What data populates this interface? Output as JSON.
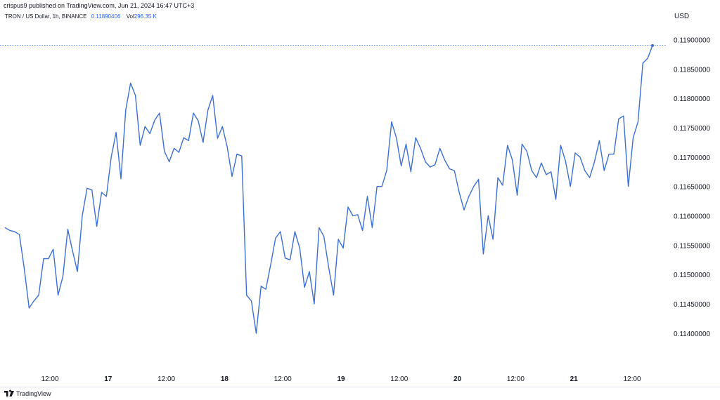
{
  "header": {
    "published": "crispus9 published on TradingView.com, Jun 21, 2024 16:47 UTC+3"
  },
  "legend": {
    "symbol": "TRON / US Dollar, 1h, BINANCE",
    "price": "0.11890406",
    "vol_label": "Vol",
    "vol_value": "296.35 K"
  },
  "currency": "USD",
  "footer": {
    "brand": "TradingView"
  },
  "colors": {
    "line": "#3c6fd6",
    "price_line": "#2962ff",
    "text": "#131722"
  },
  "chart_data": {
    "type": "line",
    "title": "TRON / US Dollar, 1h, BINANCE",
    "ylabel": "USD",
    "ylim": [
      0.1137,
      0.1194
    ],
    "y_ticks": [
      "0.11900000",
      "0.11850000",
      "0.11800000",
      "0.11750000",
      "0.11700000",
      "0.11650000",
      "0.11600000",
      "0.11550000",
      "0.11500000",
      "0.11450000",
      "0.11400000"
    ],
    "x_ticks": [
      {
        "label": "12:00",
        "bold": false
      },
      {
        "label": "17",
        "bold": true
      },
      {
        "label": "12:00",
        "bold": false
      },
      {
        "label": "18",
        "bold": true
      },
      {
        "label": "12:00",
        "bold": false
      },
      {
        "label": "19",
        "bold": true
      },
      {
        "label": "12:00",
        "bold": false
      },
      {
        "label": "20",
        "bold": true
      },
      {
        "label": "12:00",
        "bold": false
      },
      {
        "label": "21",
        "bold": true
      },
      {
        "label": "12:00",
        "bold": false
      }
    ],
    "last_price": 0.11890406,
    "grid": false,
    "series": [
      {
        "values": [
          0.1158,
          0.11575,
          0.11573,
          0.11568,
          0.1151,
          0.11443,
          0.11455,
          0.11465,
          0.11527,
          0.11527,
          0.11543,
          0.11465,
          0.11497,
          0.11577,
          0.1154,
          0.11505,
          0.116,
          0.11647,
          0.11644,
          0.11582,
          0.1164,
          0.11633,
          0.117,
          0.11742,
          0.11663,
          0.1178,
          0.11826,
          0.11805,
          0.1172,
          0.11752,
          0.1174,
          0.11763,
          0.11775,
          0.1171,
          0.11692,
          0.11715,
          0.11708,
          0.11733,
          0.11728,
          0.11775,
          0.11762,
          0.11725,
          0.1178,
          0.11805,
          0.11732,
          0.11752,
          0.11717,
          0.11667,
          0.11705,
          0.11702,
          0.11465,
          0.11455,
          0.114,
          0.1148,
          0.11475,
          0.11517,
          0.11562,
          0.11573,
          0.11528,
          0.11525,
          0.11573,
          0.11545,
          0.11478,
          0.11505,
          0.1145,
          0.1158,
          0.11565,
          0.11512,
          0.11465,
          0.1156,
          0.11545,
          0.11615,
          0.116,
          0.11602,
          0.11575,
          0.11633,
          0.1158,
          0.1165,
          0.1165,
          0.11677,
          0.1176,
          0.11733,
          0.11685,
          0.11722,
          0.11675,
          0.11733,
          0.11715,
          0.11692,
          0.11683,
          0.11687,
          0.11715,
          0.11695,
          0.1168,
          0.11677,
          0.1164,
          0.1161,
          0.11633,
          0.1165,
          0.11662,
          0.11535,
          0.116,
          0.1156,
          0.11665,
          0.11652,
          0.1172,
          0.11695,
          0.11635,
          0.11722,
          0.1171,
          0.11677,
          0.11665,
          0.1169,
          0.1167,
          0.11675,
          0.11628,
          0.1172,
          0.11693,
          0.1165,
          0.11707,
          0.117,
          0.11677,
          0.11665,
          0.11692,
          0.11728,
          0.11677,
          0.11705,
          0.11705,
          0.11765,
          0.1177,
          0.1165,
          0.11733,
          0.1176,
          0.1186,
          0.11868,
          0.1189
        ]
      }
    ]
  }
}
